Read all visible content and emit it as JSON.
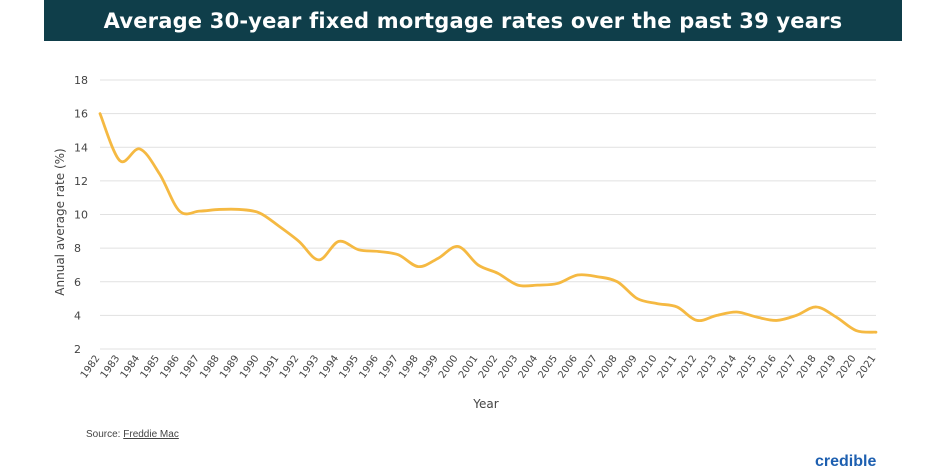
{
  "header": {
    "title": "Average 30-year fixed mortgage rates over the past 39 years"
  },
  "footer": {
    "source_label": "Source:",
    "source_link": "Freddie Mac",
    "brand": "credible"
  },
  "chart_data": {
    "type": "line",
    "title": "Average 30-year fixed mortgage rates over the past 39 years",
    "xlabel": "Year",
    "ylabel": "Annual average rate (%)",
    "ylim": [
      2,
      18
    ],
    "yticks": [
      2,
      4,
      6,
      8,
      10,
      12,
      14,
      16,
      18
    ],
    "grid": true,
    "line_color": "#f5b942",
    "categories": [
      "1982",
      "1983",
      "1984",
      "1985",
      "1986",
      "1987",
      "1988",
      "1989",
      "1990",
      "1991",
      "1992",
      "1993",
      "1994",
      "1995",
      "1996",
      "1997",
      "1998",
      "1999",
      "2000",
      "2001",
      "2002",
      "2003",
      "2004",
      "2005",
      "2006",
      "2007",
      "2008",
      "2009",
      "2010",
      "2011",
      "2012",
      "2013",
      "2014",
      "2015",
      "2016",
      "2017",
      "2018",
      "2019",
      "2020",
      "2021"
    ],
    "values": [
      16.0,
      13.2,
      13.9,
      12.4,
      10.2,
      10.2,
      10.3,
      10.3,
      10.1,
      9.3,
      8.4,
      7.3,
      8.4,
      7.9,
      7.8,
      7.6,
      6.9,
      7.4,
      8.1,
      7.0,
      6.5,
      5.8,
      5.8,
      5.9,
      6.4,
      6.3,
      6.0,
      5.0,
      4.7,
      4.5,
      3.7,
      4.0,
      4.2,
      3.9,
      3.7,
      4.0,
      4.5,
      3.9,
      3.1,
      3.0
    ]
  }
}
